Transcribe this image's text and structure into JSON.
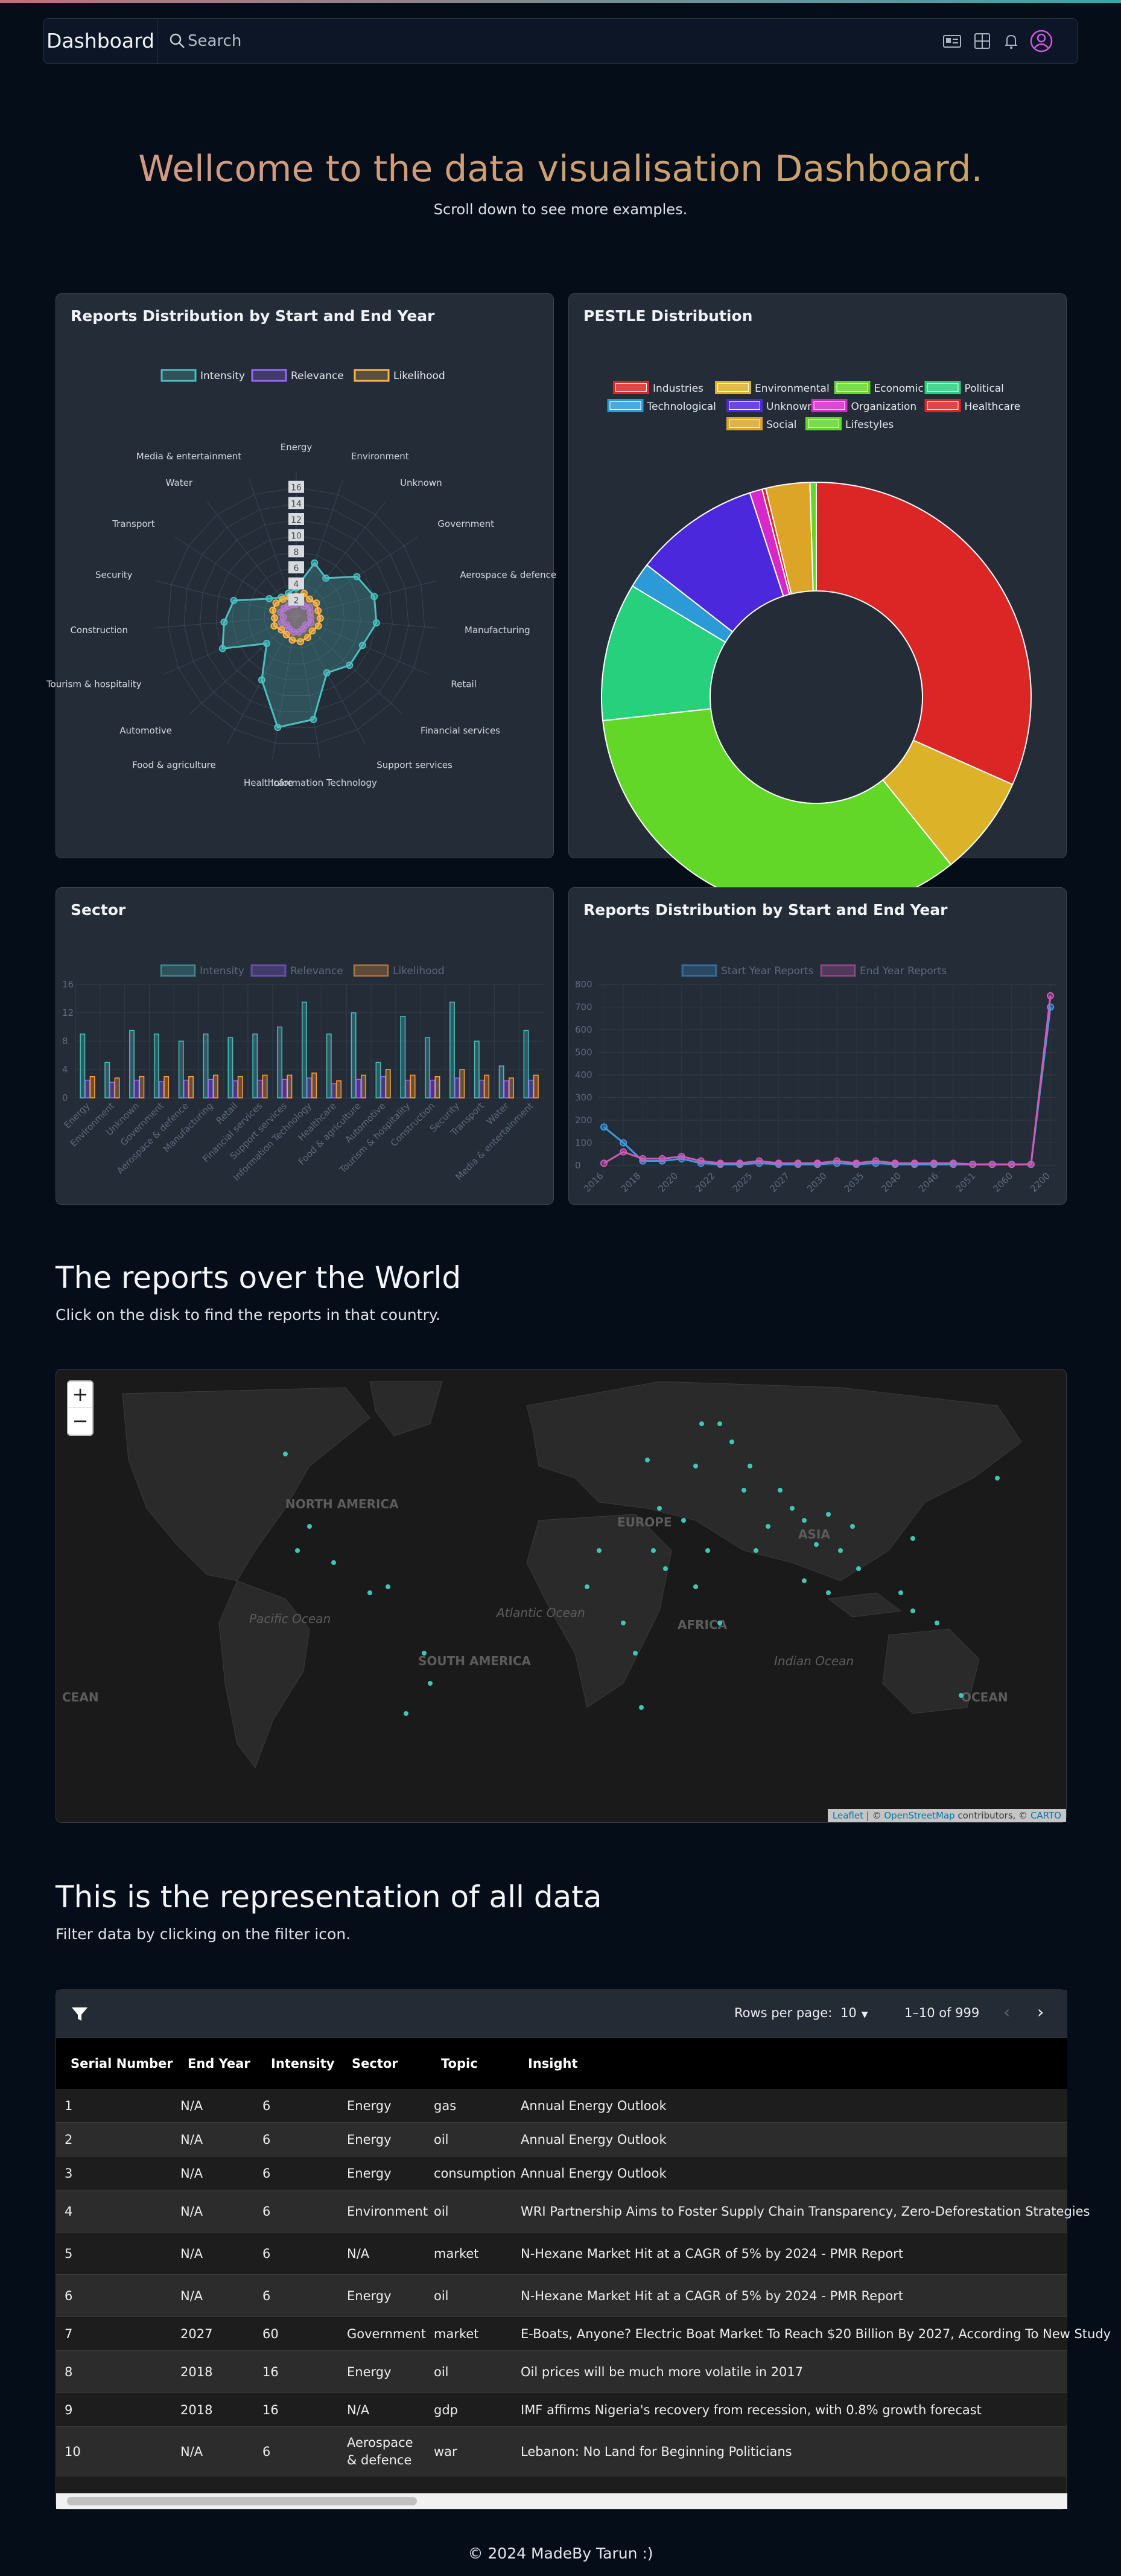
{
  "navbar": {
    "brand": "Dashboard",
    "search_placeholder": "Search",
    "icons": [
      "id-card-icon",
      "grid-icon",
      "bell-icon",
      "user-circle-icon"
    ]
  },
  "hero": {
    "title": "Wellcome to the data visualisation Dashboard.",
    "subtitle": "Scroll down to see more examples."
  },
  "radar_card": {
    "title": "Reports Distribution by Start and End Year"
  },
  "pestle_card": {
    "title": "PESTLE Distribution"
  },
  "sector_card": {
    "title": "Sector"
  },
  "line_card": {
    "title": "Reports Distribution by Start and End Year"
  },
  "world": {
    "title": "The reports over the World",
    "subtitle": "Click on the disk to find the reports in that country."
  },
  "map": {
    "zoom_in": "+",
    "zoom_out": "−",
    "labels": [
      "NORTH AMERICA",
      "SOUTH AMERICA",
      "EUROPE",
      "AFRICA",
      "ASIA",
      "Atlantic Ocean",
      "Pacific Ocean",
      "Indian Ocean",
      "OCEAN",
      "CEAN"
    ],
    "attribution": {
      "leaflet": "Leaflet",
      "sep1": " | © ",
      "osm": "OpenStreetMap",
      "mid": " contributors, © ",
      "carto": "CARTO"
    }
  },
  "all_data": {
    "title": "This is the representation of all data",
    "subtitle": "Filter data by clicking on the filter icon."
  },
  "table": {
    "rows_per_page_label": "Rows per page:",
    "rows_per_page": "10",
    "range": "1–10 of 999",
    "columns": [
      "Serial Number",
      "End Year",
      "Intensity",
      "Sector",
      "Topic",
      "Insight"
    ],
    "rows": [
      [
        "1",
        "N/A",
        "6",
        "Energy",
        "gas",
        "Annual Energy Outlook"
      ],
      [
        "2",
        "N/A",
        "6",
        "Energy",
        "oil",
        "Annual Energy Outlook"
      ],
      [
        "3",
        "N/A",
        "6",
        "Energy",
        "consumption",
        "Annual Energy Outlook"
      ],
      [
        "4",
        "N/A",
        "6",
        "Environment",
        "oil",
        "WRI Partnership Aims to Foster Supply Chain Transparency, Zero-Deforestation Strategies"
      ],
      [
        "5",
        "N/A",
        "6",
        "N/A",
        "market",
        "N-Hexane Market Hit at a CAGR of 5% by 2024 - PMR Report"
      ],
      [
        "6",
        "N/A",
        "6",
        "Energy",
        "oil",
        "N-Hexane Market Hit at a CAGR of 5% by 2024 - PMR Report"
      ],
      [
        "7",
        "2027",
        "60",
        "Government",
        "market",
        "E-Boats, Anyone? Electric Boat Market To Reach $20 Billion By 2027, According To New Study"
      ],
      [
        "8",
        "2018",
        "16",
        "Energy",
        "oil",
        "Oil prices will be much more volatile in 2017"
      ],
      [
        "9",
        "2018",
        "16",
        "N/A",
        "gdp",
        "IMF affirms Nigeria's recovery from recession, with 0.8% growth forecast"
      ],
      [
        "10",
        "N/A",
        "6",
        "Aerospace & defence",
        "war",
        "Lebanon: No Land for Beginning Politicians"
      ]
    ]
  },
  "footer": "© 2024 MadeBy Tarun :)",
  "chart_data": [
    {
      "type": "radar",
      "id": "radar",
      "legend": [
        "Intensity",
        "Relevance",
        "Likelihood"
      ],
      "colors": {
        "Intensity": "#4bc0c0",
        "Relevance": "#9966ff",
        "Likelihood": "#ffb347"
      },
      "categories": [
        "Energy",
        "Environment",
        "Unknown",
        "Government",
        "Aerospace & defence",
        "Manufacturing",
        "Retail",
        "Financial services",
        "Support services",
        "Information Technology",
        "Healthcare",
        "Food & agriculture",
        "Automotive",
        "Tourism & hospitality",
        "Construction",
        "Security",
        "Transport",
        "Water",
        "Media & entertainment"
      ],
      "ticks": [
        "16",
        "14",
        "12",
        "10",
        "8",
        "6",
        "4",
        "2"
      ],
      "rmax": 18,
      "series": [
        {
          "name": "Intensity",
          "values": [
            3.5,
            7,
            6,
            9,
            10,
            10,
            9,
            9,
            8,
            13,
            14,
            9,
            5,
            10,
            9,
            8,
            4,
            3,
            3
          ]
        },
        {
          "name": "Relevance",
          "values": [
            1.5,
            1.8,
            1.6,
            2,
            1.8,
            1.8,
            2,
            1.6,
            1.8,
            2,
            2,
            1.8,
            1.6,
            2,
            1.6,
            2,
            1.8,
            1.6,
            1.5
          ]
        },
        {
          "name": "Likelihood",
          "values": [
            2.5,
            3,
            2.7,
            3,
            2.8,
            3,
            3,
            2.7,
            3,
            3.2,
            3,
            2.6,
            2.5,
            3,
            2.7,
            3,
            3,
            2.7,
            2.5
          ]
        }
      ]
    },
    {
      "type": "pie",
      "id": "pestle",
      "legend": [
        "Industries",
        "Environmental",
        "Economic",
        "Political",
        "Technological",
        "Unknown",
        "Organization",
        "Healthcare",
        "Social",
        "Lifestyles"
      ],
      "colors": [
        "#dc2626",
        "#dcb228",
        "#62d728",
        "#26d07c",
        "#2b9ad6",
        "#4c28dc",
        "#d628c8",
        "#dc2626",
        "#dca528",
        "#62d728"
      ],
      "values": [
        33.5,
        8,
        36,
        11,
        2,
        10,
        1,
        0.3,
        3.5,
        0.5
      ]
    },
    {
      "type": "bar",
      "id": "sector",
      "legend": [
        "Intensity",
        "Relevance",
        "Likelihood"
      ],
      "categories": [
        "Energy",
        "Environment",
        "Unknown",
        "Government",
        "Aerospace & defence",
        "Manufacturing",
        "Retail",
        "Financial services",
        "Support services",
        "Information Technology",
        "Healthcare",
        "Food & agriculture",
        "Automotive",
        "Tourism & hospitality",
        "Construction",
        "Security",
        "Transport",
        "Water",
        "Media & entertainment"
      ],
      "ylim": [
        0,
        16
      ],
      "yticks": [
        "0",
        "4",
        "8",
        "12",
        "16"
      ],
      "series": [
        {
          "name": "Intensity",
          "values": [
            9,
            5,
            9.5,
            9,
            8,
            9,
            8.5,
            9,
            10,
            13.5,
            9,
            12,
            5,
            11.5,
            8.5,
            13.5,
            8,
            4.5,
            9.5
          ]
        },
        {
          "name": "Relevance",
          "values": [
            2.5,
            2.2,
            2.5,
            2.3,
            2.5,
            2.6,
            2.4,
            2.5,
            2.6,
            2.8,
            2,
            2.6,
            3,
            2.5,
            2.5,
            2.8,
            2.5,
            2.4,
            2.5
          ]
        },
        {
          "name": "Likelihood",
          "values": [
            3,
            2.8,
            3,
            3,
            3,
            3.2,
            3,
            3.2,
            3.2,
            3.5,
            2.4,
            3.2,
            4,
            3.2,
            3,
            4,
            3.2,
            2.8,
            3.2
          ]
        }
      ]
    },
    {
      "type": "line",
      "id": "yearline",
      "legend": [
        "Start Year Reports",
        "End Year Reports"
      ],
      "colors": {
        "Start Year Reports": "#3e9be0",
        "End Year Reports": "#d15ab8"
      },
      "xticks": [
        "2016",
        "2018",
        "2020",
        "2022",
        "2025",
        "2027",
        "2030",
        "2035",
        "2040",
        "2046",
        "2051",
        "2060",
        "2200"
      ],
      "ylim": [
        0,
        800
      ],
      "yticks": [
        "0",
        "100",
        "200",
        "300",
        "400",
        "500",
        "600",
        "700",
        "800"
      ],
      "series": [
        {
          "name": "Start Year Reports",
          "values": [
            170,
            100,
            20,
            20,
            30,
            10,
            5,
            5,
            10,
            5,
            5,
            5,
            10,
            5,
            10,
            5,
            5,
            5,
            5,
            5,
            5,
            5,
            5,
            700
          ]
        },
        {
          "name": "End Year Reports",
          "values": [
            10,
            60,
            30,
            30,
            40,
            20,
            10,
            10,
            20,
            10,
            10,
            10,
            20,
            10,
            20,
            10,
            10,
            10,
            10,
            5,
            5,
            5,
            5,
            750
          ]
        }
      ]
    }
  ]
}
